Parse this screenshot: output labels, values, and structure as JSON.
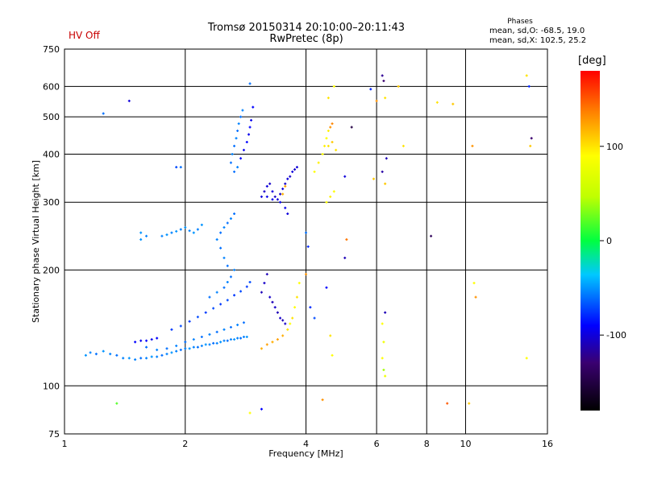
{
  "status": {
    "hv_label": "HV Off",
    "hv_color": "#c80000"
  },
  "header": {
    "title_line1": "Tromsø 20150314 20:10:00–20:11:43",
    "title_line2": "RwPretec (8p)"
  },
  "phases": {
    "heading": "Phases",
    "o_line": "mean, sd,O: -68.5, 19.0",
    "x_line": "mean, sd,X: 102.5, 25.2"
  },
  "colorbar": {
    "unit": "[deg]",
    "ticks": [
      {
        "value": 100,
        "label": "100"
      },
      {
        "value": 0,
        "label": "0"
      },
      {
        "value": -100,
        "label": "-100"
      }
    ],
    "range": [
      -180,
      180
    ]
  },
  "chart_data": {
    "type": "scatter",
    "title": "Tromsø 20150314 20:10:00–20:11:43",
    "subtitle": "RwPretec (8p)",
    "xlabel": "Frequency [MHz]",
    "ylabel": "Stationary phase Virtual Height [km]",
    "xscale": "log",
    "yscale": "log",
    "xlim": [
      1,
      16
    ],
    "ylim": [
      75,
      750
    ],
    "x_ticks": [
      1,
      2,
      4,
      6,
      8,
      10,
      16
    ],
    "y_ticks": [
      75,
      100,
      200,
      300,
      400,
      500,
      600,
      750
    ],
    "x_grid": [
      2,
      4,
      6,
      8,
      10
    ],
    "y_grid": [
      100,
      200,
      300,
      400,
      500,
      600
    ],
    "grid": true,
    "color_variable": "phase [deg]",
    "points": [
      [
        1.13,
        120,
        -50
      ],
      [
        1.16,
        122,
        -55
      ],
      [
        1.2,
        121,
        -60
      ],
      [
        1.25,
        123,
        -50
      ],
      [
        1.3,
        121,
        -55
      ],
      [
        1.35,
        120,
        -60
      ],
      [
        1.4,
        118,
        -55
      ],
      [
        1.45,
        118,
        -50
      ],
      [
        1.5,
        117,
        -55
      ],
      [
        1.55,
        118,
        -60
      ],
      [
        1.6,
        118,
        -55
      ],
      [
        1.65,
        119,
        -50
      ],
      [
        1.7,
        119,
        -55
      ],
      [
        1.75,
        120,
        -60
      ],
      [
        1.8,
        121,
        -55
      ],
      [
        1.85,
        122,
        -50
      ],
      [
        1.9,
        123,
        -55
      ],
      [
        1.95,
        124,
        -60
      ],
      [
        2.0,
        125,
        -55
      ],
      [
        2.05,
        125,
        -50
      ],
      [
        2.1,
        126,
        -55
      ],
      [
        2.15,
        126,
        -60
      ],
      [
        2.2,
        127,
        -55
      ],
      [
        2.25,
        128,
        -50
      ],
      [
        2.3,
        128,
        -55
      ],
      [
        2.35,
        129,
        -60
      ],
      [
        2.4,
        129,
        -55
      ],
      [
        2.45,
        130,
        -50
      ],
      [
        2.5,
        131,
        -55
      ],
      [
        2.55,
        131,
        -60
      ],
      [
        2.6,
        132,
        -55
      ],
      [
        2.65,
        132,
        -50
      ],
      [
        2.7,
        133,
        -55
      ],
      [
        2.75,
        133,
        -60
      ],
      [
        2.8,
        134,
        -55
      ],
      [
        2.85,
        134,
        -50
      ],
      [
        1.5,
        130,
        -90
      ],
      [
        1.55,
        131,
        -95
      ],
      [
        1.6,
        131,
        -90
      ],
      [
        1.65,
        132,
        -95
      ],
      [
        1.7,
        133,
        -90
      ],
      [
        1.6,
        126,
        -60
      ],
      [
        1.7,
        124,
        -55
      ],
      [
        1.8,
        125,
        -60
      ],
      [
        1.9,
        127,
        -55
      ],
      [
        2.0,
        130,
        -60
      ],
      [
        2.1,
        132,
        -55
      ],
      [
        2.2,
        134,
        -60
      ],
      [
        2.3,
        136,
        -55
      ],
      [
        2.4,
        138,
        -60
      ],
      [
        2.5,
        140,
        -55
      ],
      [
        2.6,
        142,
        -60
      ],
      [
        2.7,
        144,
        -55
      ],
      [
        2.8,
        146,
        -60
      ],
      [
        1.85,
        140,
        -75
      ],
      [
        1.95,
        143,
        -70
      ],
      [
        2.05,
        147,
        -75
      ],
      [
        2.15,
        151,
        -70
      ],
      [
        2.25,
        155,
        -75
      ],
      [
        2.35,
        159,
        -70
      ],
      [
        2.45,
        163,
        -75
      ],
      [
        2.55,
        167,
        -70
      ],
      [
        2.65,
        172,
        -75
      ],
      [
        2.75,
        176,
        -70
      ],
      [
        2.85,
        181,
        -75
      ],
      [
        2.9,
        186,
        -70
      ],
      [
        2.3,
        170,
        -60
      ],
      [
        2.4,
        175,
        -55
      ],
      [
        2.5,
        180,
        -60
      ],
      [
        2.55,
        186,
        -55
      ],
      [
        2.6,
        192,
        -60
      ],
      [
        2.65,
        200,
        -55
      ],
      [
        2.55,
        205,
        -60
      ],
      [
        2.5,
        215,
        -55
      ],
      [
        2.45,
        228,
        -60
      ],
      [
        2.4,
        240,
        -55
      ],
      [
        2.45,
        250,
        -60
      ],
      [
        2.5,
        258,
        -55
      ],
      [
        2.55,
        265,
        -60
      ],
      [
        2.6,
        272,
        -55
      ],
      [
        2.65,
        280,
        -60
      ],
      [
        1.55,
        240,
        -50
      ],
      [
        1.6,
        245,
        -55
      ],
      [
        1.55,
        250,
        -50
      ],
      [
        1.75,
        245,
        -55
      ],
      [
        1.8,
        247,
        -50
      ],
      [
        1.85,
        250,
        -55
      ],
      [
        1.9,
        252,
        -50
      ],
      [
        1.95,
        255,
        -55
      ],
      [
        2.0,
        258,
        -50
      ],
      [
        2.05,
        253,
        -55
      ],
      [
        2.1,
        250,
        -50
      ],
      [
        2.15,
        255,
        -55
      ],
      [
        2.2,
        262,
        -50
      ],
      [
        2.6,
        380,
        -60
      ],
      [
        2.62,
        400,
        -55
      ],
      [
        2.65,
        420,
        -60
      ],
      [
        2.68,
        440,
        -55
      ],
      [
        2.7,
        460,
        -60
      ],
      [
        2.72,
        480,
        -55
      ],
      [
        2.75,
        500,
        -60
      ],
      [
        2.78,
        520,
        -55
      ],
      [
        2.65,
        360,
        -60
      ],
      [
        2.7,
        370,
        -55
      ],
      [
        2.75,
        390,
        -90
      ],
      [
        2.8,
        410,
        -95
      ],
      [
        2.85,
        430,
        -90
      ],
      [
        2.88,
        450,
        -95
      ],
      [
        2.9,
        470,
        -90
      ],
      [
        2.92,
        490,
        -95
      ],
      [
        2.95,
        530,
        -90
      ],
      [
        2.9,
        610,
        -60
      ],
      [
        3.1,
        310,
        -100
      ],
      [
        3.15,
        320,
        -105
      ],
      [
        3.2,
        330,
        -100
      ],
      [
        3.25,
        335,
        -105
      ],
      [
        3.3,
        320,
        -100
      ],
      [
        3.35,
        310,
        -105
      ],
      [
        3.4,
        305,
        -100
      ],
      [
        3.45,
        315,
        -105
      ],
      [
        3.5,
        325,
        -100
      ],
      [
        3.55,
        335,
        -105
      ],
      [
        3.6,
        345,
        -100
      ],
      [
        3.65,
        350,
        -105
      ],
      [
        3.7,
        360,
        -100
      ],
      [
        3.75,
        365,
        -105
      ],
      [
        3.8,
        370,
        -100
      ],
      [
        3.2,
        310,
        -95
      ],
      [
        3.3,
        305,
        -95
      ],
      [
        3.45,
        300,
        -95
      ],
      [
        3.55,
        290,
        -95
      ],
      [
        3.6,
        280,
        -100
      ],
      [
        3.1,
        175,
        -110
      ],
      [
        3.15,
        185,
        -105
      ],
      [
        3.2,
        195,
        -110
      ],
      [
        3.25,
        170,
        -105
      ],
      [
        3.3,
        165,
        -110
      ],
      [
        3.35,
        160,
        -105
      ],
      [
        3.4,
        155,
        -110
      ],
      [
        3.45,
        150,
        -105
      ],
      [
        3.5,
        148,
        -110
      ],
      [
        3.55,
        145,
        -105
      ],
      [
        3.1,
        125,
        120
      ],
      [
        3.2,
        128,
        125
      ],
      [
        3.3,
        130,
        120
      ],
      [
        3.4,
        132,
        125
      ],
      [
        3.5,
        135,
        120
      ],
      [
        3.6,
        140,
        100
      ],
      [
        3.65,
        145,
        90
      ],
      [
        3.7,
        150,
        100
      ],
      [
        3.75,
        160,
        90
      ],
      [
        3.8,
        170,
        100
      ],
      [
        3.85,
        185,
        90
      ],
      [
        3.5,
        315,
        120
      ],
      [
        3.55,
        330,
        125
      ],
      [
        4.2,
        360,
        90
      ],
      [
        4.3,
        380,
        95
      ],
      [
        4.4,
        400,
        90
      ],
      [
        4.45,
        420,
        95
      ],
      [
        4.5,
        440,
        90
      ],
      [
        4.55,
        460,
        95
      ],
      [
        4.6,
        470,
        130
      ],
      [
        4.65,
        480,
        135
      ],
      [
        4.5,
        300,
        90
      ],
      [
        4.6,
        310,
        95
      ],
      [
        4.7,
        320,
        90
      ],
      [
        4.55,
        420,
        100
      ],
      [
        4.65,
        430,
        110
      ],
      [
        4.75,
        410,
        100
      ],
      [
        4.0,
        250,
        -60
      ],
      [
        4.05,
        230,
        -80
      ],
      [
        4.0,
        195,
        130
      ],
      [
        4.1,
        160,
        -80
      ],
      [
        4.2,
        150,
        -70
      ],
      [
        4.5,
        180,
        -90
      ],
      [
        4.6,
        135,
        100
      ],
      [
        4.65,
        120,
        90
      ],
      [
        4.55,
        560,
        100
      ],
      [
        4.7,
        600,
        90
      ],
      [
        5.0,
        350,
        -100
      ],
      [
        5.0,
        215,
        -110
      ],
      [
        5.05,
        240,
        140
      ],
      [
        5.2,
        470,
        -150
      ],
      [
        5.8,
        590,
        -80
      ],
      [
        6.2,
        640,
        -120
      ],
      [
        6.25,
        620,
        -130
      ],
      [
        6.3,
        560,
        100
      ],
      [
        6.35,
        390,
        -110
      ],
      [
        6.2,
        360,
        -115
      ],
      [
        6.3,
        335,
        110
      ],
      [
        6.2,
        145,
        90
      ],
      [
        6.25,
        130,
        80
      ],
      [
        6.3,
        155,
        -110
      ],
      [
        6.2,
        118,
        90
      ],
      [
        6.25,
        110,
        40
      ],
      [
        6.3,
        106,
        80
      ],
      [
        6.0,
        550,
        130
      ],
      [
        5.9,
        345,
        110
      ],
      [
        6.8,
        600,
        110
      ],
      [
        7.0,
        420,
        100
      ],
      [
        8.2,
        245,
        -140
      ],
      [
        8.5,
        545,
        100
      ],
      [
        9.0,
        90,
        150
      ],
      [
        9.3,
        540,
        110
      ],
      [
        10.2,
        90,
        110
      ],
      [
        10.5,
        185,
        90
      ],
      [
        10.6,
        170,
        130
      ],
      [
        10.4,
        420,
        130
      ],
      [
        14.2,
        640,
        100
      ],
      [
        14.4,
        600,
        -80
      ],
      [
        14.6,
        440,
        -130
      ],
      [
        14.5,
        420,
        110
      ],
      [
        14.2,
        118,
        90
      ],
      [
        1.25,
        510,
        -60
      ],
      [
        1.45,
        550,
        -100
      ],
      [
        1.9,
        370,
        -70
      ],
      [
        1.95,
        370,
        -60
      ],
      [
        1.35,
        90,
        20
      ],
      [
        2.9,
        85,
        90
      ],
      [
        3.1,
        87,
        -90
      ],
      [
        4.4,
        92,
        130
      ]
    ]
  }
}
